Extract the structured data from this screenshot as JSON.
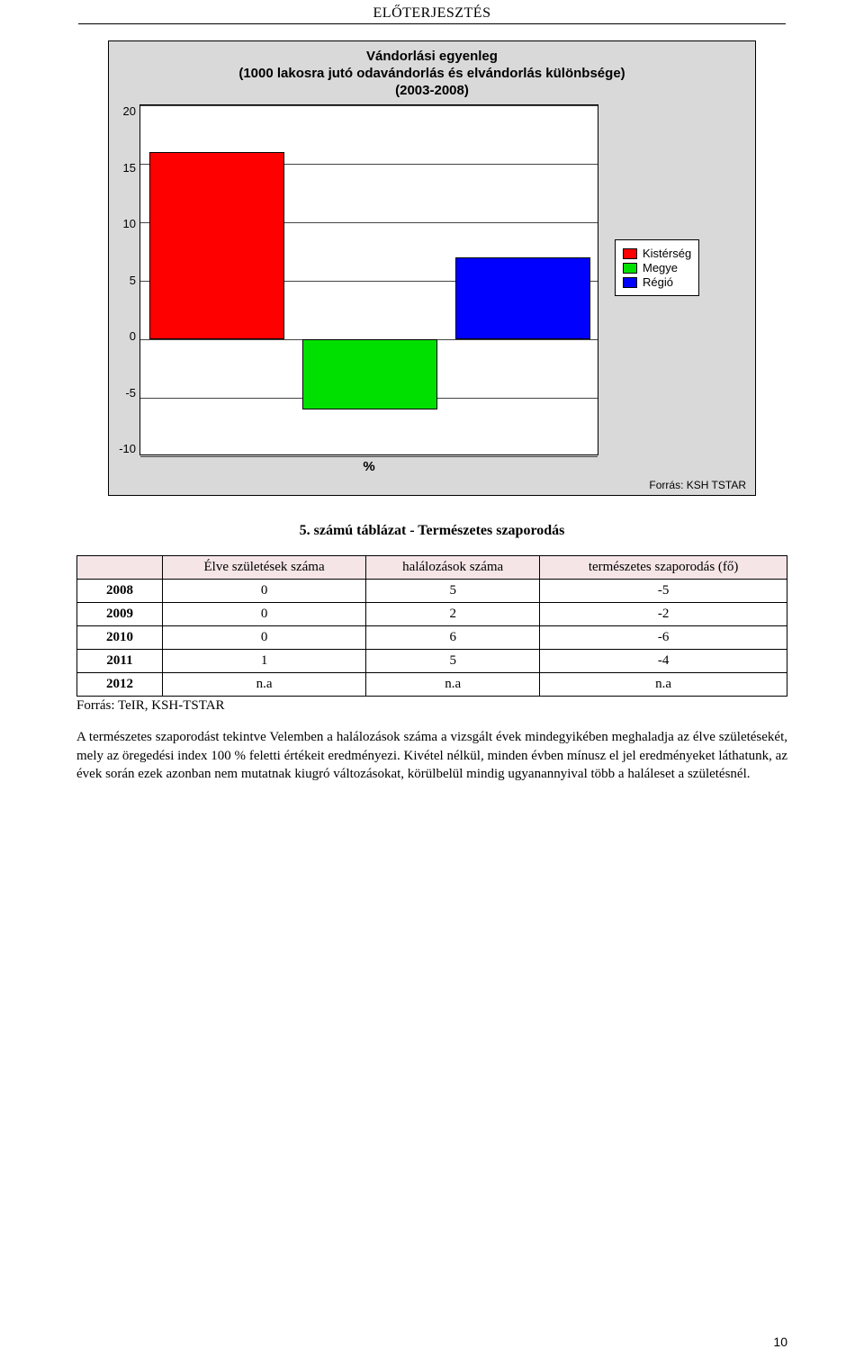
{
  "header": "ELŐTERJESZTÉS",
  "chart": {
    "title_line1": "Vándorlási egyenleg",
    "title_line2": "(1000 lakosra jutó odavándorlás és elvándorlás különbsége)",
    "title_line3": "(2003-2008)",
    "yticks": [
      "20",
      "15",
      "10",
      "5",
      "0",
      "-5",
      "-10"
    ],
    "ylim": [
      -10,
      20
    ],
    "bars": [
      {
        "label": "Kistérség",
        "value_low": 0,
        "value_high": 16,
        "color": "#ff0000"
      },
      {
        "label": "Megye",
        "value_low": -6,
        "value_high": 0,
        "color": "#00e000"
      },
      {
        "label": "Régió",
        "value_low": 0,
        "value_high": 7,
        "color": "#0000ff"
      }
    ],
    "x_label": "%",
    "legend": [
      {
        "label": "Kistérség",
        "color": "#ff0000"
      },
      {
        "label": "Megye",
        "color": "#00e000"
      },
      {
        "label": "Régió",
        "color": "#0000ff"
      }
    ],
    "source": "Forrás: KSH TSTAR",
    "plot_bg": "#ffffff",
    "outer_bg": "#d9d9d9"
  },
  "table_caption": "5. számú táblázat - Természetes szaporodás",
  "table": {
    "columns": [
      "",
      "Élve születések száma",
      "halálozások száma",
      "természetes szaporodás (fő)"
    ],
    "rows": [
      [
        "2008",
        "0",
        "5",
        "-5"
      ],
      [
        "2009",
        "0",
        "2",
        "-2"
      ],
      [
        "2010",
        "0",
        "6",
        "-6"
      ],
      [
        "2011",
        "1",
        "5",
        "-4"
      ],
      [
        "2012",
        "n.a",
        "n.a",
        "n.a"
      ]
    ],
    "header_bg": "#f5e5e7"
  },
  "table_source": "Forrás: TeIR, KSH-TSTAR",
  "paragraph": "A természetes szaporodást tekintve Velemben a halálozások száma a vizsgált évek mindegyikében meghaladja az élve születésekét, mely az öregedési index 100 % feletti értékeit eredményezi. Kivétel nélkül, minden évben mínusz el jel  eredményeket láthatunk, az évek során ezek azonban nem mutatnak kiugró változásokat, körülbelül mindig ugyanannyival több a haláleset a születésnél.",
  "page_number": "10"
}
